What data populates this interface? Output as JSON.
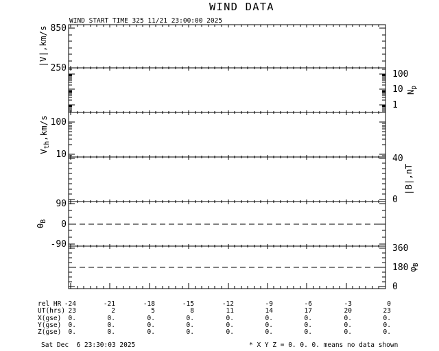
{
  "title": "WIND DATA",
  "start_time_label": "WIND START TIME 325 11/21 23:00:00 2025",
  "footer": {
    "generated": "Sat Dec  6 23:30:03 2025",
    "note": "* X Y Z = 0. 0. 0. means no data shown"
  },
  "chart_data": {
    "type": "line",
    "title": "WIND DATA",
    "subtitle": "WIND START TIME 325 11/21 23:00:00 2025",
    "grid": false,
    "series": [],
    "series_note": "No data traces plotted in any panel; X Y Z = 0. 0. 0. means no data shown",
    "colors": {
      "foreground": "#000000",
      "background": "#ffffff"
    },
    "x_axis": {
      "label": "rel HR",
      "range": [
        -24.157,
        0
      ],
      "major_tick_step": 3,
      "minor_tick_step": 0.5,
      "major_tick_values": [
        -24,
        -21,
        -18,
        -15,
        -12,
        -9,
        -6,
        -3,
        0
      ]
    },
    "panels": [
      {
        "name": "flow-speed",
        "scale": "linear",
        "side": "left",
        "range_bottom_top": [
          245,
          902
        ],
        "label_parts": [
          [
            "|V|",
            false
          ],
          [
            ",km/s",
            false
          ]
        ],
        "major_ticks": [
          {
            "value": 850,
            "label": "850"
          },
          {
            "value": 250,
            "label": "250"
          }
        ],
        "minor_step": 100
      },
      {
        "name": "proton-density",
        "scale": "log",
        "side": "right",
        "range_bottom_top": [
          0.324,
          251
        ],
        "label_parts": [
          [
            "N",
            false
          ],
          [
            "p",
            true
          ]
        ],
        "major_ticks": [
          {
            "value": 100,
            "label": "100"
          },
          {
            "value": 10,
            "label": "10"
          },
          {
            "value": 1,
            "label": "1"
          }
        ]
      },
      {
        "name": "thermal-speed",
        "scale": "log",
        "side": "left",
        "range_bottom_top": [
          8.2,
          198.6
        ],
        "label_parts": [
          [
            "V",
            false
          ],
          [
            "th",
            true
          ],
          [
            ",km/s",
            false
          ]
        ],
        "major_ticks": [
          {
            "value": 100,
            "label": "100"
          },
          {
            "value": 10,
            "label": "10"
          }
        ]
      },
      {
        "name": "field-magnitude",
        "scale": "linear",
        "side": "right",
        "range_bottom_top": [
          -2,
          41.3
        ],
        "label_parts": [
          [
            "|B|",
            false
          ],
          [
            ",nT",
            false
          ]
        ],
        "major_ticks": [
          {
            "value": 40,
            "label": "40"
          },
          {
            "value": 0,
            "label": "0"
          }
        ],
        "minor_step": 5
      },
      {
        "name": "theta-b",
        "scale": "linear",
        "side": "left",
        "range_bottom_top": [
          -99.1,
          99.1
        ],
        "label_parts": [
          [
            "θ",
            false
          ],
          [
            "B",
            true
          ]
        ],
        "major_ticks": [
          {
            "value": 90,
            "label": "90"
          },
          {
            "value": 0,
            "label": "0"
          },
          {
            "value": -90,
            "label": "-90"
          }
        ],
        "minor_step": 30,
        "dashed_line_at": 0
      },
      {
        "name": "phi-b",
        "scale": "linear",
        "side": "right",
        "range_bottom_top": [
          -19.2,
          379.2
        ],
        "label_parts": [
          [
            "φ",
            false
          ],
          [
            "B",
            true
          ]
        ],
        "major_ticks": [
          {
            "value": 360,
            "label": "360"
          },
          {
            "value": 180,
            "label": "180"
          },
          {
            "value": 0,
            "label": "0"
          }
        ],
        "minor_step": 45,
        "dashed_line_at": 180
      }
    ],
    "table": {
      "rows": [
        {
          "label": "rel HR",
          "values": [
            "-24",
            "-21",
            "-18",
            "-15",
            "-12",
            "-9",
            "-6",
            "-3",
            "0"
          ]
        },
        {
          "label": "UT(hrs)",
          "values": [
            "23",
            "2",
            "5",
            "8",
            "11",
            "14",
            "17",
            "20",
            "23"
          ]
        },
        {
          "label": "X(gse)",
          "values": [
            "0.",
            "0.",
            "0.",
            "0.",
            "0.",
            "0.",
            "0.",
            "0.",
            "0."
          ]
        },
        {
          "label": "Y(gse)",
          "values": [
            "0.",
            "0.",
            "0.",
            "0.",
            "0.",
            "0.",
            "0.",
            "0.",
            "0."
          ]
        },
        {
          "label": "Z(gse)",
          "values": [
            "0.",
            "0.",
            "0.",
            "0.",
            "0.",
            "0.",
            "0.",
            "0.",
            "0."
          ]
        }
      ]
    }
  }
}
